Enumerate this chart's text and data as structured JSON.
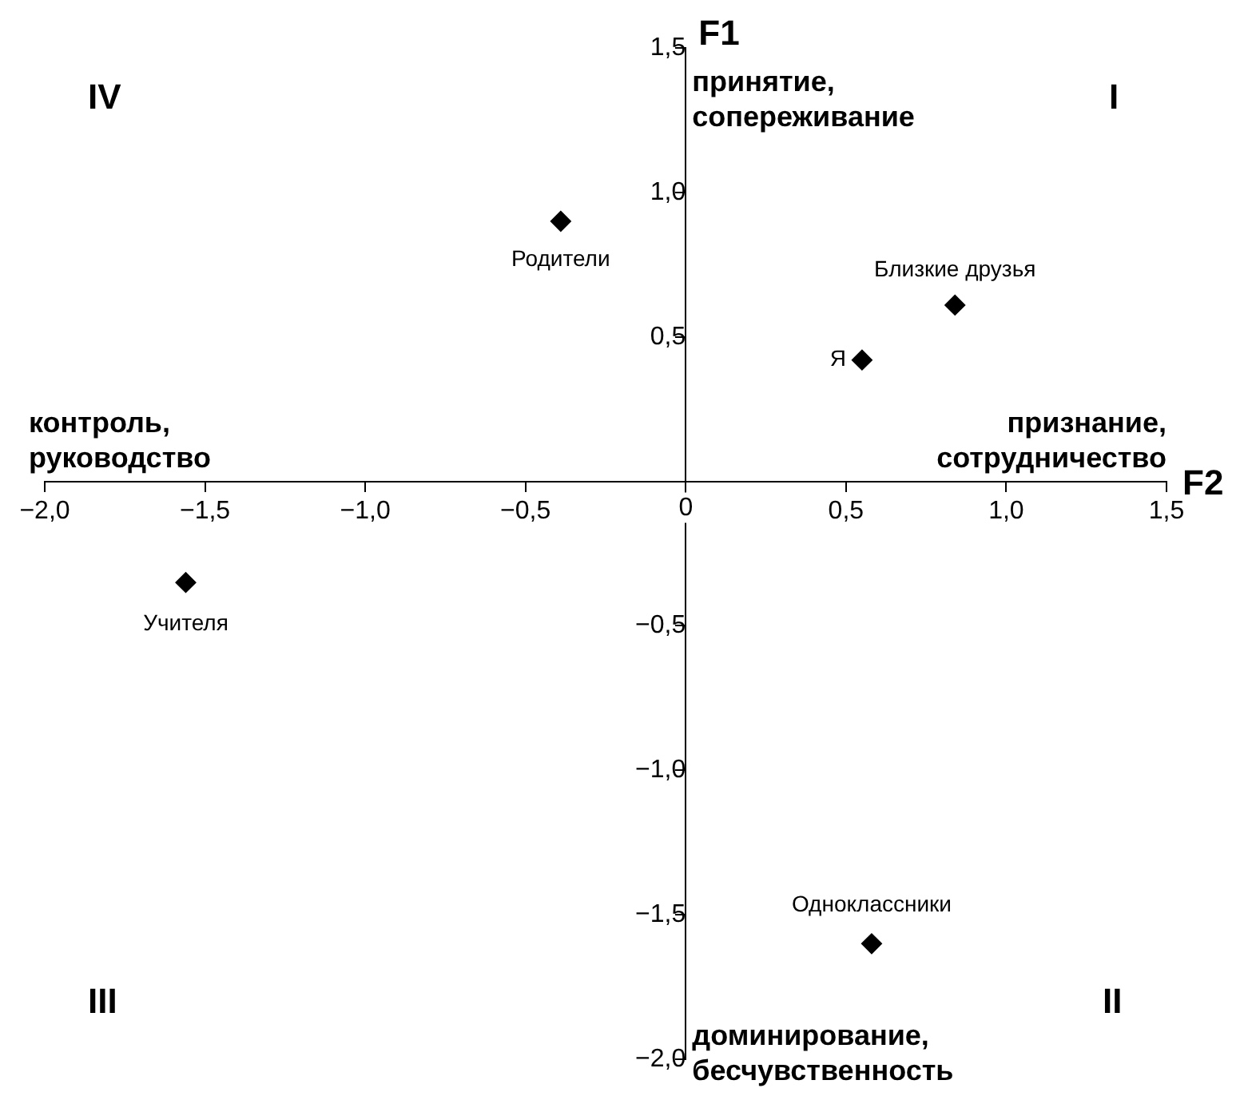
{
  "chart_data": {
    "type": "scatter",
    "xlabel": "F2",
    "ylabel": "F1",
    "x": [
      -0.39,
      0.84,
      0.55,
      -1.56,
      0.58
    ],
    "values": [
      0.9,
      0.61,
      0.42,
      -0.35,
      -1.6
    ],
    "color": "#000000",
    "marker": "diamond",
    "grid": false,
    "legend": false,
    "xlim": [
      -2.0,
      1.5
    ],
    "ylim": [
      -2.0,
      1.5
    ],
    "xticks": [
      {
        "value": -2.0,
        "label": "−2,0"
      },
      {
        "value": -1.5,
        "label": "−1,5"
      },
      {
        "value": -1.0,
        "label": "−1,0"
      },
      {
        "value": -0.5,
        "label": "−0,5"
      },
      {
        "value": 0,
        "label": "0"
      },
      {
        "value": 0.5,
        "label": "0,5"
      },
      {
        "value": 1.0,
        "label": "1,0"
      },
      {
        "value": 1.5,
        "label": "1,5"
      }
    ],
    "yticks": [
      {
        "value": -2.0,
        "label": "−2,0"
      },
      {
        "value": -1.5,
        "label": "−1,5"
      },
      {
        "value": -1.0,
        "label": "−1,0"
      },
      {
        "value": -0.5,
        "label": "−0,5"
      },
      {
        "value": 0,
        "label": null
      },
      {
        "value": 0.5,
        "label": "0,5"
      },
      {
        "value": 1.0,
        "label": "1,0"
      },
      {
        "value": 1.5,
        "label": "1,5"
      }
    ],
    "annotations": [
      "I",
      "II",
      "III",
      "IV",
      "принятие, сопереживание",
      "признание, сотрудничество",
      "доминирование, бесчувственность",
      "контроль, руководство",
      {
        "text": "Родители",
        "x": -0.39,
        "y": 0.9
      },
      {
        "text": "Близкие друзья",
        "x": 0.84,
        "y": 0.61
      },
      {
        "text": "Я",
        "x": 0.55,
        "y": 0.42
      },
      {
        "text": "Учителя",
        "x": -1.56,
        "y": -0.35
      },
      {
        "text": "Одноклассники",
        "x": 0.58,
        "y": -1.6
      }
    ]
  }
}
